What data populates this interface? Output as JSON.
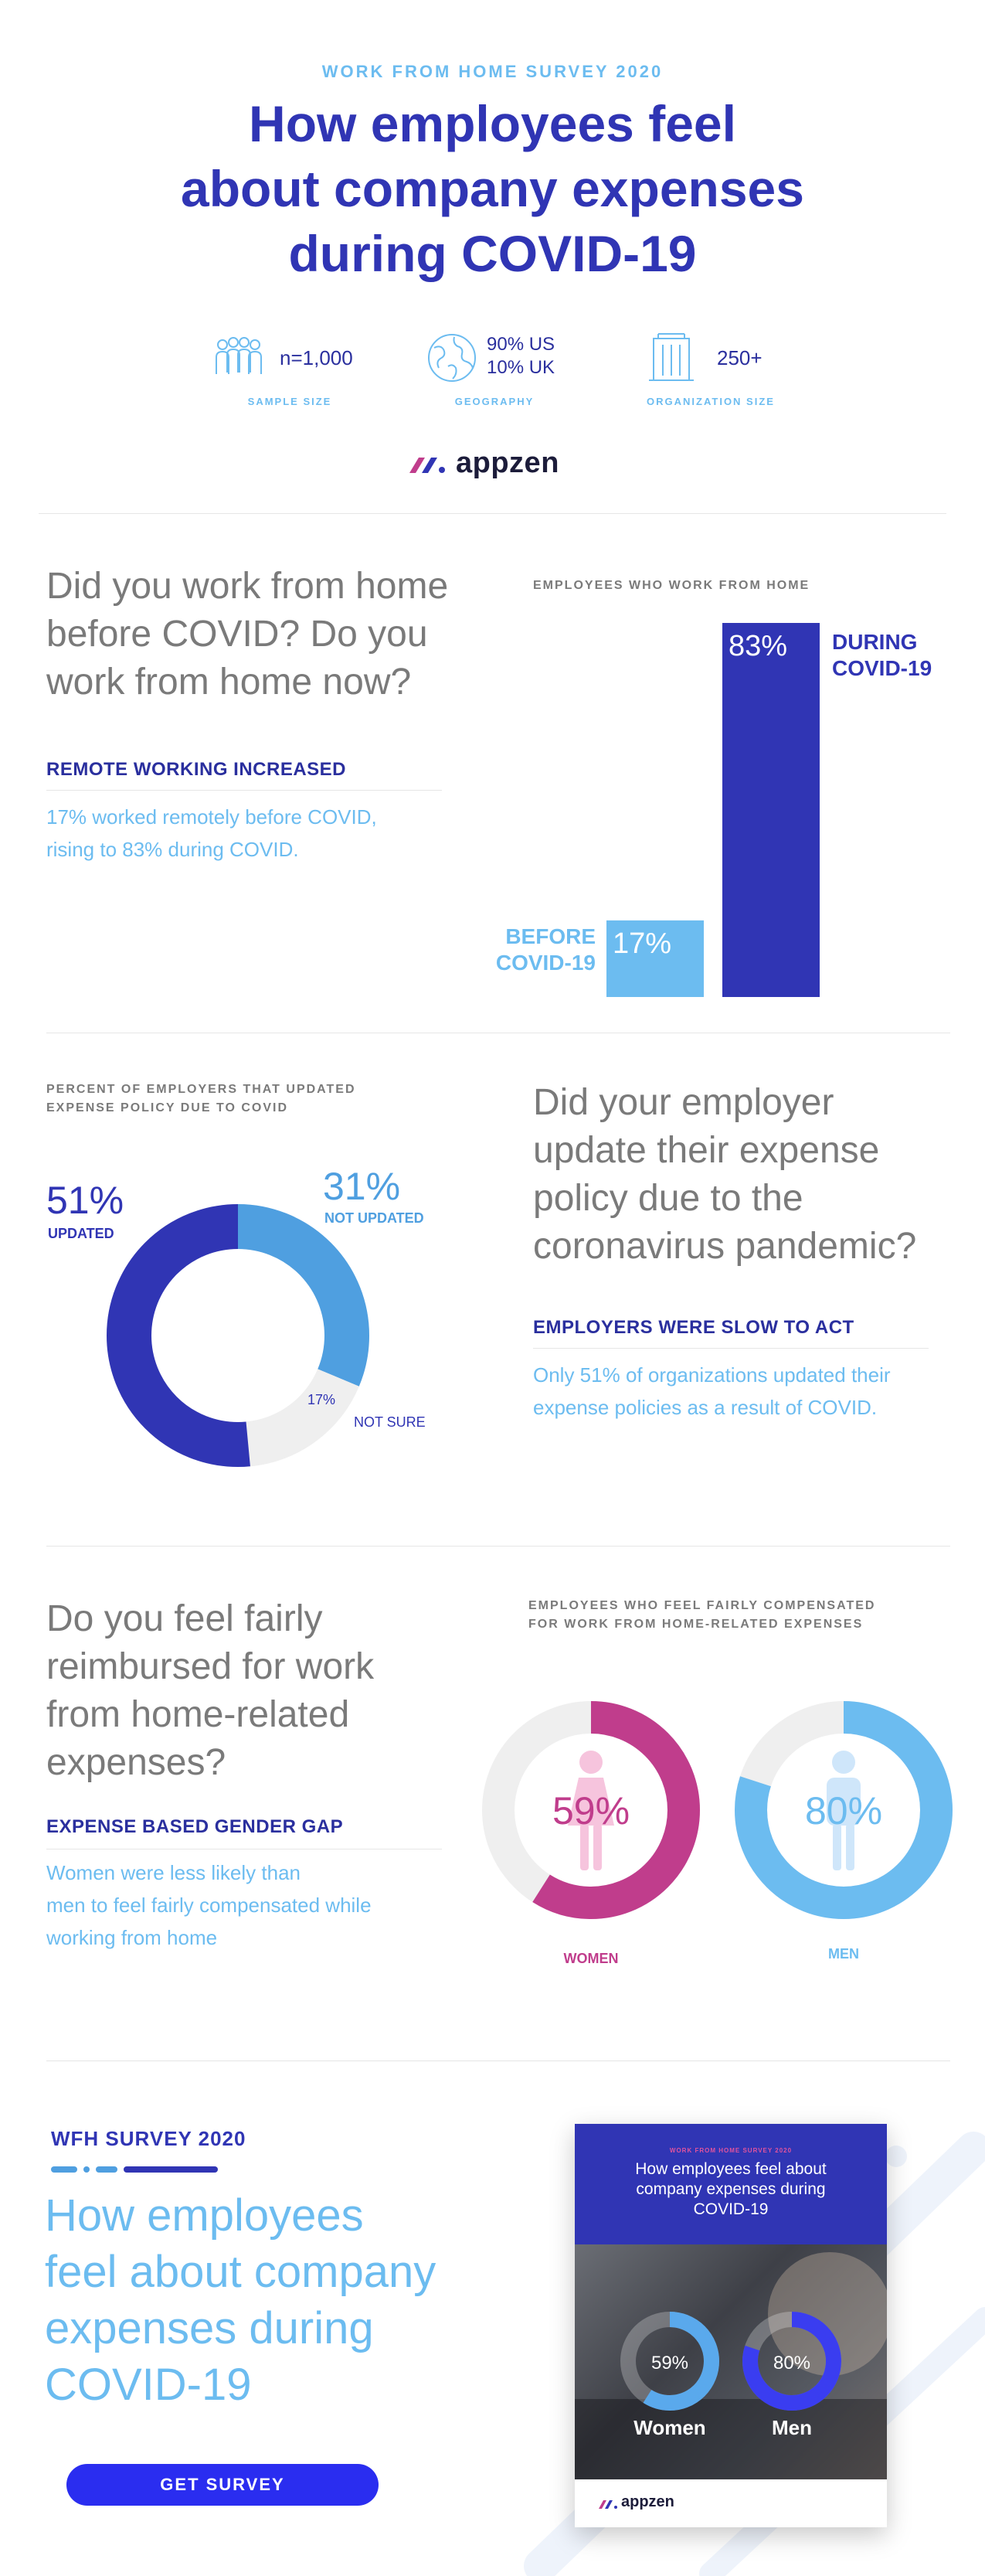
{
  "header": {
    "kicker": "WORK FROM HOME SURVEY 2020",
    "title_lines": [
      "How employees feel",
      "about company expenses",
      "during COVID-19"
    ]
  },
  "stats": [
    {
      "icon": "people-group-icon",
      "value": "n=1,000",
      "caption": "SAMPLE SIZE"
    },
    {
      "icon": "globe-icon",
      "value_line1": "90% US",
      "value_line2": "10% UK",
      "caption": "GEOGRAPHY"
    },
    {
      "icon": "building-icon",
      "value": "250+",
      "caption": "ORGANIZATION SIZE"
    }
  ],
  "brand": {
    "name": "appzen"
  },
  "section1": {
    "question_lines": [
      "Did you work from home",
      "before COVID? Do you",
      "work from home now?"
    ],
    "subhead": "REMOTE WORKING INCREASED",
    "desc_lines": [
      "17% worked remotely before COVID,",
      "rising to 83% during COVID."
    ],
    "chart_kicker": "EMPLOYEES WHO WORK FROM HOME"
  },
  "section2": {
    "chart_kicker_lines": [
      "PERCENT OF EMPLOYERS THAT UPDATED",
      "EXPENSE POLICY DUE TO COVID"
    ],
    "question_lines": [
      "Did your employer",
      "update their expense",
      "policy due to the",
      "coronavirus pandemic?"
    ],
    "subhead": "EMPLOYERS WERE SLOW TO ACT",
    "desc_lines": [
      "Only 51% of organizations updated their",
      "expense policies as a result of COVID."
    ]
  },
  "section3": {
    "question_lines": [
      "Do you feel fairly",
      "reimbursed for work",
      "from home-related",
      "expenses?"
    ],
    "subhead": "EXPENSE BASED GENDER GAP",
    "desc_lines": [
      "Women were less likely than",
      "men to feel fairly compensated while",
      "working from home"
    ],
    "chart_kicker_lines": [
      "EMPLOYEES WHO FEEL FAIRLY COMPENSATED",
      "FOR WORK FROM HOME-RELATED EXPENSES"
    ]
  },
  "chart_data": [
    {
      "type": "bar",
      "title": "EMPLOYEES WHO WORK FROM HOME",
      "categories": [
        "BEFORE COVID-19",
        "DURING COVID-19"
      ],
      "category_lines": [
        [
          "BEFORE",
          "COVID-19"
        ],
        [
          "DURING",
          "COVID-19"
        ]
      ],
      "values": [
        17,
        83
      ],
      "value_labels": [
        "17%",
        "83%"
      ],
      "colors": [
        "#6cbcf0",
        "#3035b4"
      ],
      "ylim": [
        0,
        83
      ]
    },
    {
      "type": "pie",
      "title": "PERCENT OF EMPLOYERS THAT UPDATED EXPENSE POLICY DUE TO COVID",
      "slices": [
        {
          "label": "UPDATED",
          "value": 51,
          "value_label": "51%",
          "color": "#3035b4"
        },
        {
          "label": "NOT UPDATED",
          "value": 31,
          "value_label": "31%",
          "color": "#4f9fe0"
        },
        {
          "label": "NOT SURE",
          "value": 17,
          "value_label": "17%",
          "color": "#efefef"
        }
      ]
    },
    {
      "type": "pie",
      "title": "EMPLOYEES WHO FEEL FAIRLY COMPENSATED FOR WORK FROM HOME-RELATED EXPENSES",
      "groups": [
        {
          "label": "WOMEN",
          "value": 59,
          "value_label": "59%",
          "color": "#c03d8c"
        },
        {
          "label": "MEN",
          "value": 80,
          "value_label": "80%",
          "color": "#6cbcf0"
        }
      ]
    }
  ],
  "promo": {
    "kicker": "WFH SURVEY 2020",
    "title_lines": [
      "How employees",
      "feel about company",
      "expenses during",
      "COVID-19"
    ],
    "button_label": "GET SURVEY",
    "cover": {
      "kicker": "WORK FROM HOME SURVEY 2020",
      "title_lines": [
        "How employees feel about",
        "company expenses during",
        "COVID-19"
      ],
      "women_value": "59%",
      "women_label": "Women",
      "men_value": "80%",
      "men_label": "Men",
      "brand": "appzen"
    }
  },
  "colors": {
    "navy": "#3035b4",
    "sky": "#6cbcf0",
    "magenta": "#c03d8c",
    "gray": "#7a7a7a",
    "button": "#2a2df0"
  }
}
